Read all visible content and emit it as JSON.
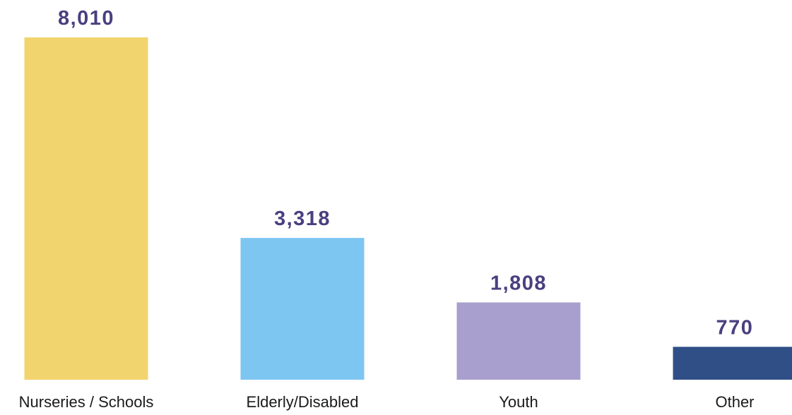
{
  "chart_data": {
    "type": "bar",
    "categories": [
      "Nurseries / Schools",
      "Elderly/Disabled",
      "Youth",
      "Other"
    ],
    "values": [
      8010,
      3318,
      1808,
      770
    ],
    "value_labels": [
      "8,010",
      "3,318",
      "1,808",
      "770"
    ],
    "bar_colors": [
      "#F2D46E",
      "#7EC6F2",
      "#A89FCE",
      "#304F87"
    ],
    "value_label_color": "#4A3F7F",
    "category_label_color": "#1A1A1A",
    "ylim": [
      0,
      8010
    ],
    "grid": false,
    "legend": "none"
  }
}
